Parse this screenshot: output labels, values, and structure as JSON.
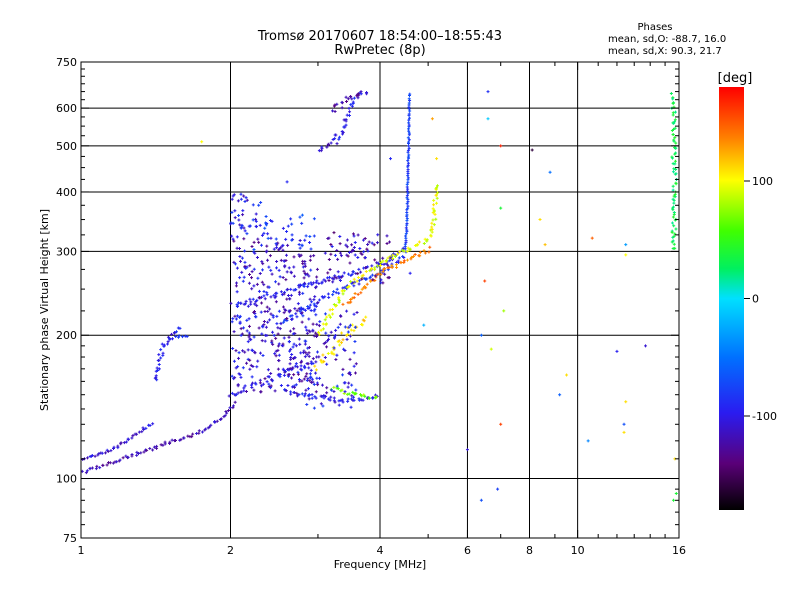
{
  "chart_data": {
    "type": "scatter",
    "title": "Tromsø 20170607 18:54:00–18:55:43",
    "subtitle": "RwPretec (8p)",
    "xlabel": "Frequency [MHz]",
    "ylabel": "Stationary phase Virtual Height [km]",
    "x_scale": "log",
    "y_scale": "log",
    "xlim": [
      1,
      16
    ],
    "ylim": [
      75,
      750
    ],
    "x_ticks": [
      1,
      2,
      4,
      6,
      8,
      10,
      16
    ],
    "x_tick_labels": [
      "1",
      "2",
      "4",
      "6",
      "8",
      "10",
      "16"
    ],
    "x_major_gridlines": [
      2,
      4,
      6,
      8,
      10
    ],
    "y_ticks": [
      75,
      100,
      200,
      300,
      400,
      500,
      600,
      750
    ],
    "y_tick_labels": [
      "75",
      "100",
      "200",
      "300",
      "400",
      "500",
      "600",
      "750"
    ],
    "y_major_gridlines": [
      100,
      200,
      300,
      400,
      500,
      600
    ],
    "grid": true,
    "colorbar": {
      "label": "[deg]",
      "range": [
        -180,
        180
      ],
      "ticks": [
        100,
        0,
        -100
      ],
      "tick_labels": [
        "100",
        "0",
        "-100"
      ]
    },
    "phases_box": {
      "heading": "Phases",
      "line_o": "mean, sd,O:  -88.7, 16.0",
      "line_x": "mean, sd,X:  90.3, 21.7"
    },
    "series": [
      {
        "traces": [
          {
            "x": [
              1.0,
              1.1,
              1.2,
              1.3,
              1.4,
              1.5,
              1.6,
              1.7,
              1.8,
              1.9,
              2.0,
              2.05
            ],
            "y": [
              103,
              106,
              110,
              113,
              116,
              119,
              121,
              124,
              128,
              133,
              140,
              145
            ],
            "phase": -120,
            "jitter": 1.5
          },
          {
            "x": [
              1.0,
              1.05,
              1.1,
              1.15,
              1.2,
              1.25,
              1.3,
              1.35,
              1.4
            ],
            "y": [
              110,
              111,
              113,
              115,
              118,
              121,
              124,
              128,
              131
            ],
            "phase": -110,
            "jitter": 1.2
          },
          {
            "x": [
              1.42,
              1.45,
              1.5,
              1.55,
              1.6
            ],
            "y": [
              160,
              185,
              197,
              203,
              210
            ],
            "phase": -100,
            "jitter": 2
          },
          {
            "x": [
              1.5,
              1.55,
              1.6,
              1.65
            ],
            "y": [
              196,
              198,
              199,
              199
            ],
            "phase": -95,
            "jitter": 1
          },
          {
            "x": [
              2.05,
              2.2,
              2.4,
              2.6,
              2.8,
              3.0,
              3.2,
              3.4,
              3.6,
              3.8,
              4.0,
              4.2,
              4.4,
              4.5
            ],
            "y": [
              230,
              236,
              242,
              248,
              254,
              259,
              264,
              268,
              272,
              276,
              281,
              290,
              300,
              310
            ],
            "phase": -100,
            "jitter": 2
          },
          {
            "x": [
              2.5,
              2.8,
              3.1,
              3.4,
              3.7,
              4.0,
              4.3,
              4.5
            ],
            "y": [
              210,
              225,
              240,
              252,
              262,
              272,
              282,
              295
            ],
            "phase": -90,
            "jitter": 2
          },
          {
            "x": [
              4.5,
              4.52,
              4.54,
              4.55,
              4.56,
              4.57,
              4.58,
              4.58,
              4.59
            ],
            "y": [
              300,
              330,
              370,
              410,
              460,
              510,
              560,
              610,
              650
            ],
            "phase": -80,
            "jitter": 0.6
          },
          {
            "x": [
              2.6,
              2.8,
              3.0,
              3.2,
              3.4,
              3.6,
              3.8,
              4.0
            ],
            "y": [
              152,
              150,
              148,
              147,
              146,
              146,
              147,
              150
            ],
            "phase": -100,
            "jitter": 2
          },
          {
            "x": [
              2.0,
              2.2,
              2.4,
              2.6,
              2.8,
              3.0
            ],
            "y": [
              148,
              156,
              162,
              168,
              172,
              176
            ],
            "phase": -100,
            "jitter": 3
          },
          {
            "x": [
              3.3,
              3.4,
              3.5,
              3.6,
              3.7,
              3.8
            ],
            "y": [
              510,
              560,
              600,
              630,
              645,
              650
            ],
            "phase": -100,
            "jitter": 2
          },
          {
            "x": [
              3.0,
              3.1,
              3.2,
              3.3
            ],
            "y": [
              490,
              500,
              515,
              530
            ],
            "phase": -110,
            "jitter": 2
          },
          {
            "x": [
              3.2,
              3.3,
              3.4,
              3.5,
              3.6,
              3.7
            ],
            "y": [
              590,
              605,
              620,
              635,
              640,
              645
            ],
            "phase": -125,
            "jitter": 3
          },
          {
            "x": [
              3.0,
              3.2,
              3.4,
              3.6,
              3.8,
              4.0,
              4.2,
              4.4,
              4.6,
              4.8,
              5.0,
              5.1,
              5.15,
              5.2
            ],
            "y": [
              200,
              225,
              250,
              262,
              272,
              281,
              290,
              298,
              305,
              311,
              318,
              330,
              360,
              420
            ],
            "phase": 95,
            "jitter": 2
          },
          {
            "x": [
              3.2,
              3.4,
              3.6,
              3.8,
              4.0
            ],
            "y": [
              155,
              152,
              150,
              148,
              150
            ],
            "phase": 70,
            "jitter": 2
          },
          {
            "x": [
              3.0,
              3.2,
              3.4,
              3.6,
              3.8
            ],
            "y": [
              170,
              185,
              200,
              210,
              220
            ],
            "phase": 110,
            "jitter": 4
          },
          {
            "x": [
              3.4,
              3.6,
              3.8,
              4.0,
              4.3,
              4.6,
              4.9,
              5.1
            ],
            "y": [
              232,
              245,
              258,
              270,
              280,
              290,
              298,
              305
            ],
            "phase": 140,
            "jitter": 2
          },
          {
            "x": [
              15.5,
              15.6,
              15.6,
              15.7,
              15.6,
              15.7,
              15.6
            ],
            "y": [
              640,
              610,
              560,
              520,
              480,
              420,
              300
            ],
            "phase": 30,
            "jitter": 2
          }
        ],
        "clouds": [
          {
            "x0": 2.0,
            "x1": 3.0,
            "y0": 150,
            "y1": 320,
            "phase": -110,
            "n": 360,
            "tag": "main-cloud"
          },
          {
            "x0": 2.6,
            "x1": 3.6,
            "y0": 140,
            "y1": 230,
            "phase": -105,
            "n": 130,
            "tag": "lower-cloud"
          },
          {
            "x0": 2.0,
            "x1": 2.3,
            "y0": 320,
            "y1": 400,
            "phase": -100,
            "n": 40,
            "tag": "upper-left-cloud"
          },
          {
            "x0": 3.1,
            "x1": 4.2,
            "y0": 255,
            "y1": 330,
            "phase": -120,
            "n": 80,
            "tag": "mid-cloud"
          },
          {
            "x0": 2.2,
            "x1": 3.0,
            "y0": 300,
            "y1": 360,
            "phase": -85,
            "n": 35,
            "tag": "green-sprinkle"
          }
        ],
        "scatter": [
          {
            "x": 6.6,
            "y": 650,
            "phase": -90
          },
          {
            "x": 6.6,
            "y": 570,
            "phase": -10
          },
          {
            "x": 7.0,
            "y": 500,
            "phase": 170
          },
          {
            "x": 8.1,
            "y": 490,
            "phase": -160
          },
          {
            "x": 8.8,
            "y": 440,
            "phase": -50
          },
          {
            "x": 7.0,
            "y": 370,
            "phase": 40
          },
          {
            "x": 8.4,
            "y": 350,
            "phase": 110
          },
          {
            "x": 8.6,
            "y": 310,
            "phase": 120
          },
          {
            "x": 6.5,
            "y": 260,
            "phase": 160
          },
          {
            "x": 7.1,
            "y": 225,
            "phase": 80
          },
          {
            "x": 6.4,
            "y": 200,
            "phase": -60
          },
          {
            "x": 6.7,
            "y": 187,
            "phase": 90
          },
          {
            "x": 7.0,
            "y": 130,
            "phase": 160
          },
          {
            "x": 6.0,
            "y": 115,
            "phase": -110
          },
          {
            "x": 6.4,
            "y": 90,
            "phase": -70
          },
          {
            "x": 6.9,
            "y": 95,
            "phase": -80
          },
          {
            "x": 10.7,
            "y": 320,
            "phase": 150
          },
          {
            "x": 12.5,
            "y": 310,
            "phase": -30
          },
          {
            "x": 12.5,
            "y": 295,
            "phase": 100
          },
          {
            "x": 12.0,
            "y": 185,
            "phase": -100
          },
          {
            "x": 13.7,
            "y": 190,
            "phase": -110
          },
          {
            "x": 9.5,
            "y": 165,
            "phase": 110
          },
          {
            "x": 9.2,
            "y": 150,
            "phase": -60
          },
          {
            "x": 12.5,
            "y": 145,
            "phase": 110
          },
          {
            "x": 10.5,
            "y": 120,
            "phase": -40
          },
          {
            "x": 12.4,
            "y": 130,
            "phase": -70
          },
          {
            "x": 12.4,
            "y": 125,
            "phase": 110
          },
          {
            "x": 15.7,
            "y": 110,
            "phase": 110
          },
          {
            "x": 15.8,
            "y": 93,
            "phase": 40
          },
          {
            "x": 15.6,
            "y": 90,
            "phase": 40
          },
          {
            "x": 5.1,
            "y": 570,
            "phase": 130
          },
          {
            "x": 5.2,
            "y": 470,
            "phase": 110
          },
          {
            "x": 4.9,
            "y": 210,
            "phase": -20
          },
          {
            "x": 4.6,
            "y": 270,
            "phase": -100
          },
          {
            "x": 4.2,
            "y": 470,
            "phase": -95
          },
          {
            "x": 1.75,
            "y": 510,
            "phase": 100
          },
          {
            "x": 2.6,
            "y": 420,
            "phase": -95
          },
          {
            "x": 2.3,
            "y": 380,
            "phase": -80
          }
        ]
      }
    ]
  }
}
